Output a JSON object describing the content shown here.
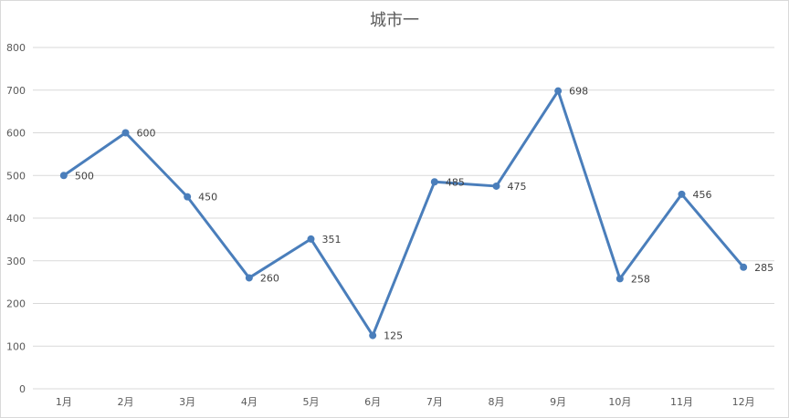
{
  "chart_data": {
    "type": "line",
    "title": "城市一",
    "xlabel": "",
    "ylabel": "",
    "categories": [
      "1月",
      "2月",
      "3月",
      "4月",
      "5月",
      "6月",
      "7月",
      "8月",
      "9月",
      "10月",
      "11月",
      "12月"
    ],
    "series": [
      {
        "values": [
          500,
          600,
          450,
          260,
          351,
          125,
          485,
          475,
          698,
          258,
          456,
          285
        ]
      }
    ],
    "ylim": [
      0,
      800
    ],
    "yticks": [
      0,
      100,
      200,
      300,
      400,
      500,
      600,
      700,
      800
    ],
    "grid": true,
    "data_labels": true,
    "line_color": "#4a7ebb",
    "grid_color": "#d9d9d9",
    "text_color": "#595959"
  }
}
